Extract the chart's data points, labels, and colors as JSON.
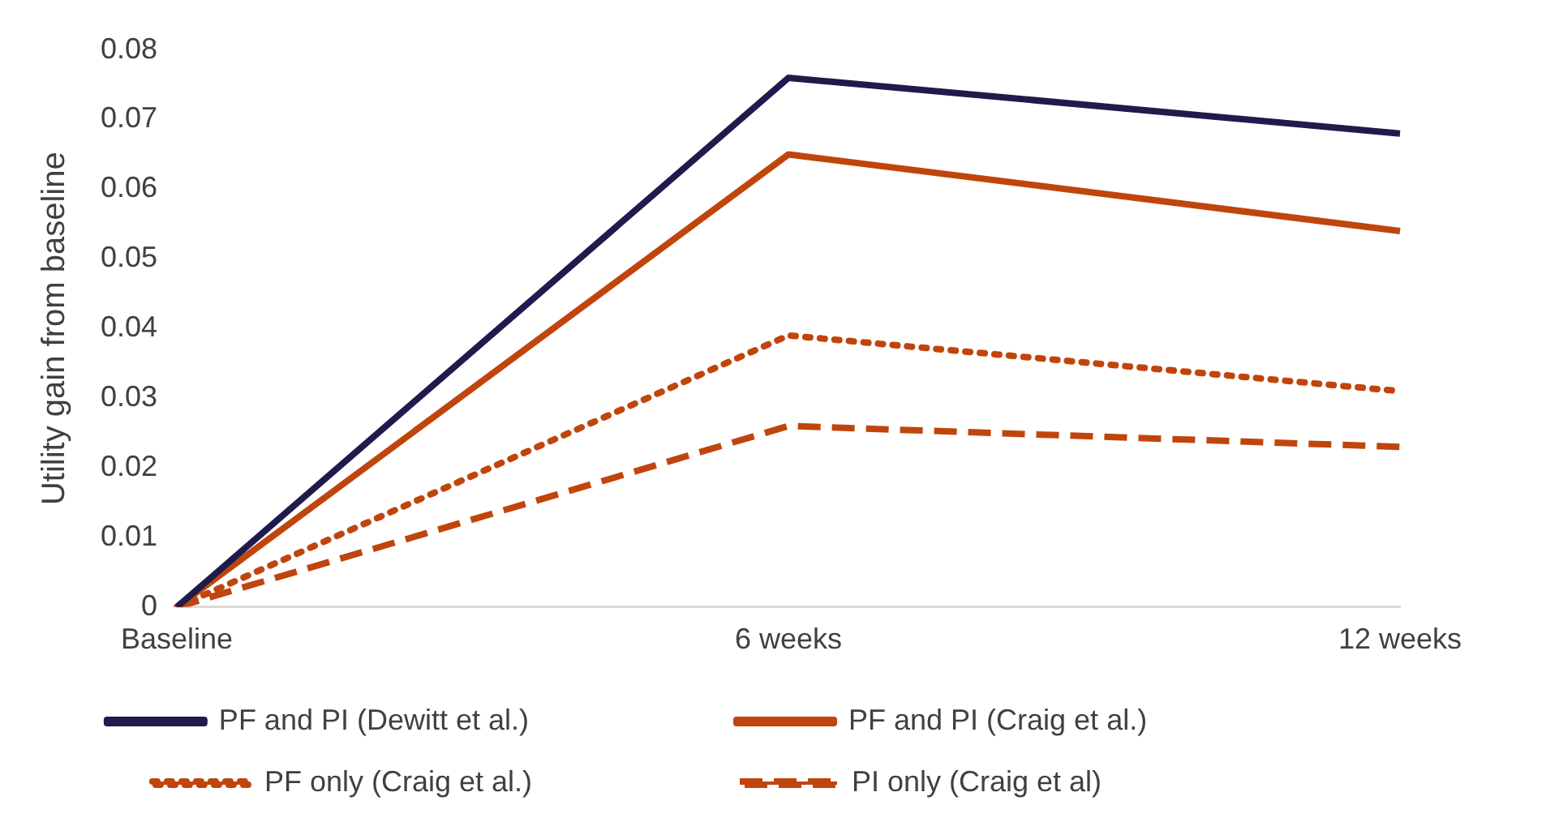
{
  "chart_data": {
    "type": "line",
    "ylabel": "Utility gain from baseline",
    "categories": [
      "Baseline",
      "6 weeks",
      "12 weeks"
    ],
    "series": [
      {
        "name": "PF and PI (Dewitt et al.)",
        "color": "#1f1b4d",
        "values": [
          0,
          0.076,
          0.068
        ],
        "line_style": "solid"
      },
      {
        "name": "PF and PI (Craig et al.)",
        "color": "#c0450c",
        "values": [
          0,
          0.065,
          0.054
        ],
        "line_style": "solid"
      },
      {
        "name": "PF only (Craig et al.)",
        "color": "#c0450c",
        "values": [
          0,
          0.039,
          0.031
        ],
        "line_style": "dotted"
      },
      {
        "name": "PI only (Craig et al)",
        "color": "#c0450c",
        "values": [
          0,
          0.026,
          0.023
        ],
        "line_style": "dashed"
      }
    ],
    "ylim": [
      0,
      0.08
    ],
    "yticks": [
      0,
      0.01,
      0.02,
      0.03,
      0.04,
      0.05,
      0.06,
      0.07,
      0.08
    ],
    "grid": false,
    "legend": "bottom",
    "marker": "none"
  }
}
